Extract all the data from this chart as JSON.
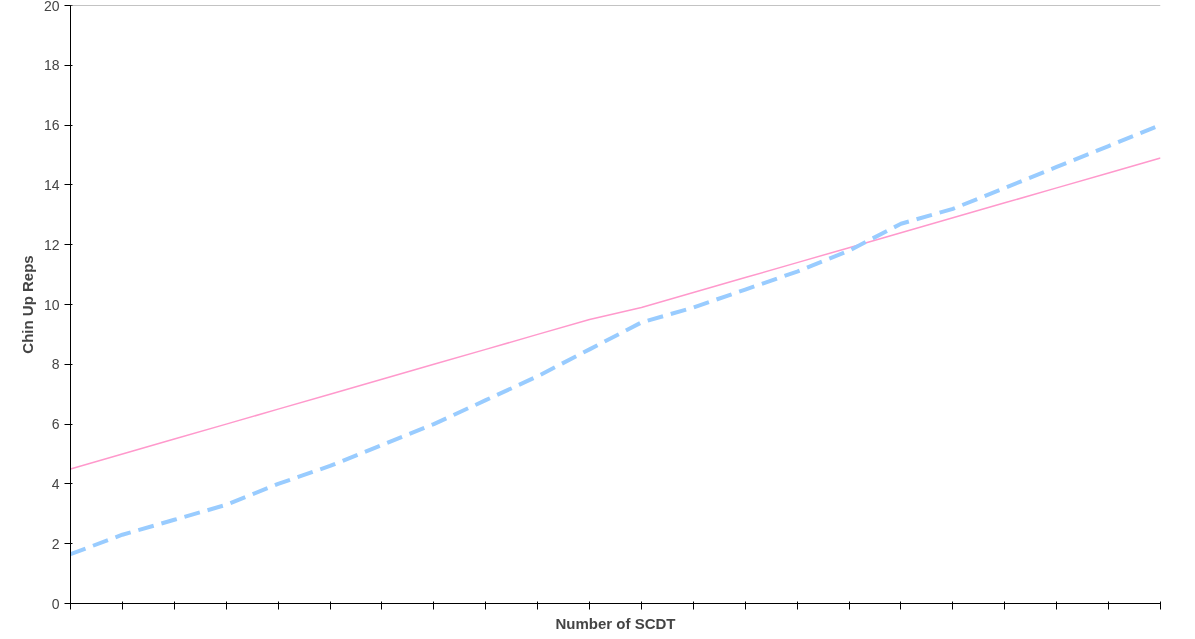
{
  "chart_data": {
    "type": "line",
    "xlabel": "Number of SCDT",
    "ylabel": "Chin Up Reps",
    "categories": [
      null,
      null,
      null,
      null,
      null,
      null,
      null,
      null,
      null,
      null,
      null,
      null,
      null,
      null,
      null,
      null,
      null,
      null,
      null,
      null,
      null,
      null
    ],
    "ylim": [
      0,
      20
    ],
    "yticks": [
      0,
      2,
      4,
      6,
      8,
      10,
      12,
      14,
      16,
      18,
      20
    ],
    "grid": false,
    "marker": "none",
    "series": [
      {
        "color": "#ff99cc",
        "line_style": "solid",
        "values": [
          4.5,
          5.0,
          5.5,
          6.0,
          6.5,
          7.0,
          7.5,
          8.0,
          8.5,
          9.0,
          9.5,
          9.9,
          10.4,
          10.9,
          11.4,
          11.9,
          12.4,
          12.9,
          13.4,
          13.9,
          14.4,
          14.9
        ]
      },
      {
        "color": "#99ccff",
        "line_style": "dashed",
        "values": [
          1.65,
          2.3,
          2.8,
          3.3,
          4.0,
          4.6,
          5.3,
          6.0,
          6.8,
          7.6,
          8.5,
          9.4,
          9.9,
          10.5,
          11.1,
          11.8,
          12.7,
          13.2,
          13.9,
          14.6,
          15.3,
          16.0
        ]
      }
    ]
  }
}
